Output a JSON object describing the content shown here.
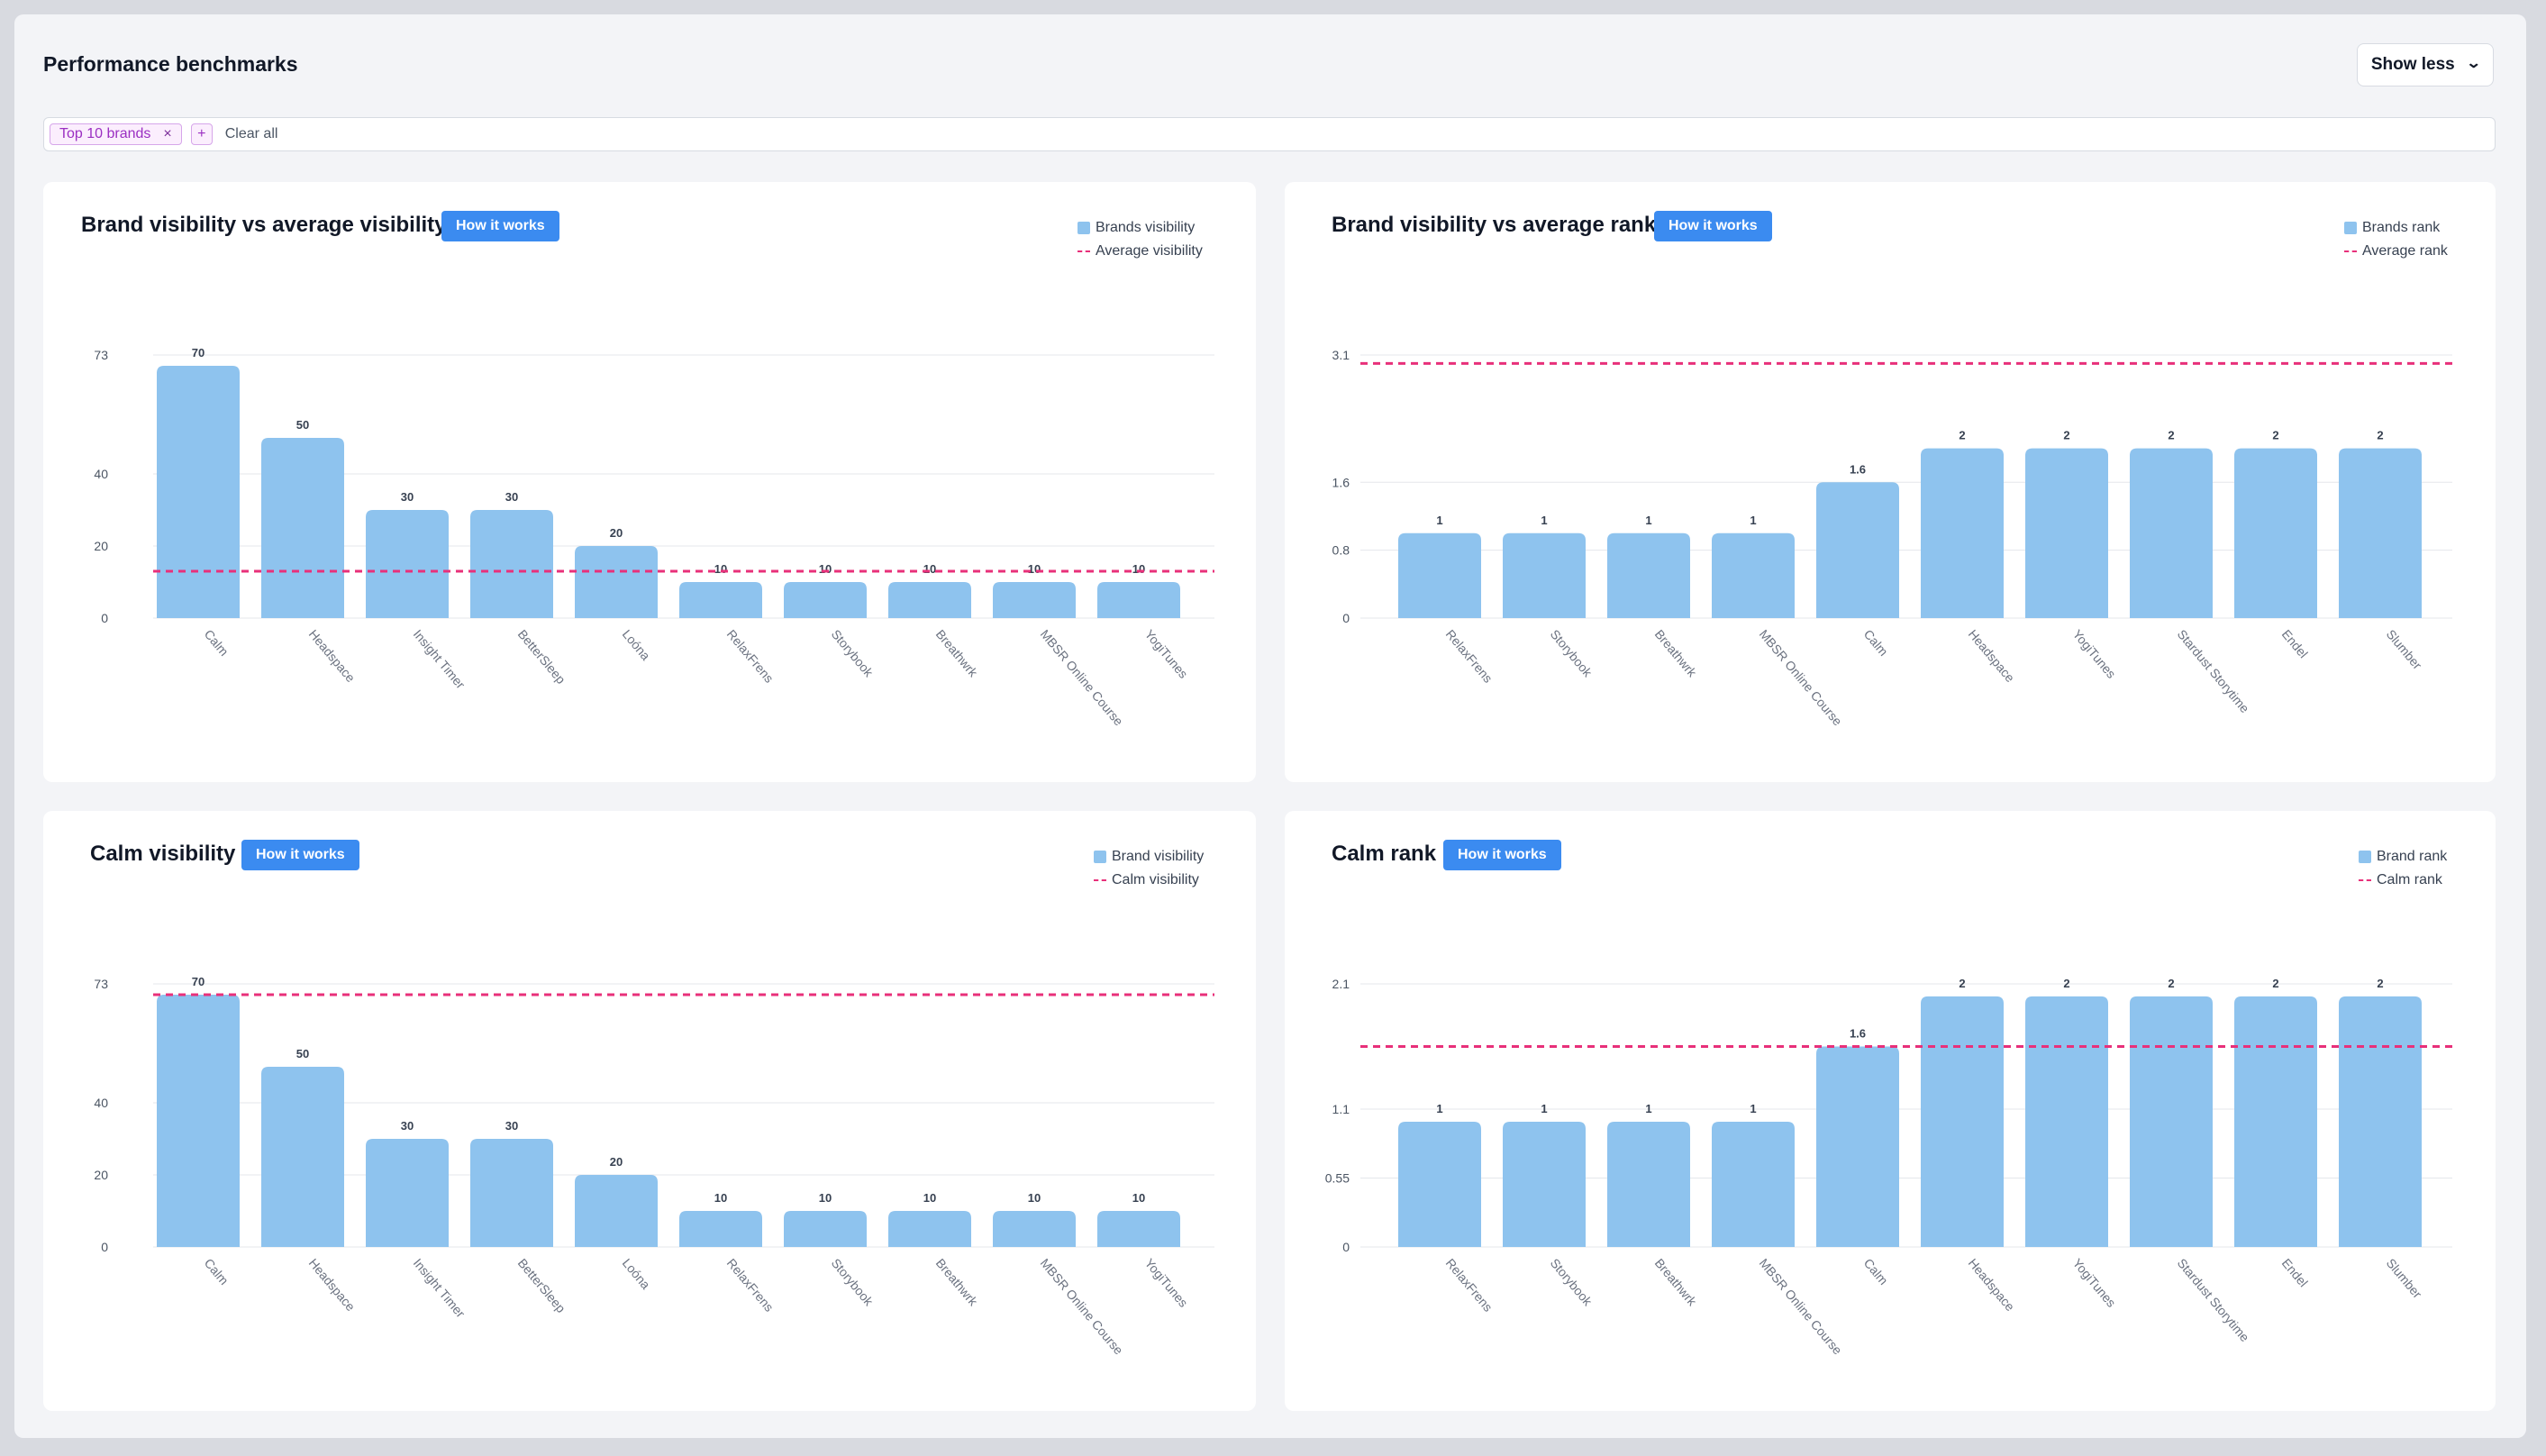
{
  "header": {
    "title": "Performance benchmarks",
    "show_less_label": "Show less",
    "show_less_icon": "chevron-down-icon"
  },
  "filters": {
    "chips": [
      {
        "label": "Top 10 brands",
        "remove_icon": "close-icon"
      }
    ],
    "add_label": "+",
    "clear_all_label": "Clear all"
  },
  "colors": {
    "bar": "#8ec3ee",
    "reference_line": "#e8307a",
    "accent_button": "#3b8bf0"
  },
  "cards": [
    {
      "title": "Brand visibility vs average visibility",
      "how_label": "How it works",
      "legend": {
        "bars": "Brands visibility",
        "line": "Average visibility"
      }
    },
    {
      "title": "Brand visibility vs average rank",
      "how_label": "How it works",
      "legend": {
        "bars": "Brands rank",
        "line": "Average rank"
      }
    },
    {
      "title": "Calm visibility",
      "how_label": "How it works",
      "legend": {
        "bars": "Brand visibility",
        "line": "Calm visibility"
      }
    },
    {
      "title": "Calm rank",
      "how_label": "How it works",
      "legend": {
        "bars": "Brand rank",
        "line": "Calm rank"
      }
    }
  ],
  "chart_data": [
    {
      "type": "bar",
      "title": "Brand visibility vs average visibility",
      "categories": [
        "Calm",
        "Headspace",
        "Insight Timer",
        "BetterSleep",
        "Loóna",
        "RelaxFrens",
        "Storybook",
        "Breathwrk",
        "MBSR Online Course",
        "YogiTunes"
      ],
      "series": [
        {
          "name": "Brands visibility",
          "values": [
            70,
            50,
            30,
            30,
            20,
            10,
            10,
            10,
            10,
            10
          ]
        }
      ],
      "reference_line": {
        "name": "Average visibility",
        "value": 13
      }
    },
    {
      "type": "bar",
      "title": "Brand visibility vs average rank",
      "categories": [
        "RelaxFrens",
        "Storybook",
        "Breathwrk",
        "MBSR Online Course",
        "Calm",
        "Headspace",
        "YogiTunes",
        "Stardust Storytime",
        "Endel",
        "Slumber"
      ],
      "series": [
        {
          "name": "Brands rank",
          "values": [
            1,
            1,
            1,
            1,
            1.6,
            2,
            2,
            2,
            2,
            2
          ]
        }
      ],
      "reference_line": {
        "name": "Average rank",
        "value": 3
      }
    },
    {
      "type": "bar",
      "title": "Calm visibility",
      "categories": [
        "Calm",
        "Headspace",
        "Insight Timer",
        "BetterSleep",
        "Loóna",
        "RelaxFrens",
        "Storybook",
        "Breathwrk",
        "MBSR Online Course",
        "YogiTunes"
      ],
      "series": [
        {
          "name": "Brand visibility",
          "values": [
            70,
            50,
            30,
            30,
            20,
            10,
            10,
            10,
            10,
            10
          ]
        }
      ],
      "reference_line": {
        "name": "Calm visibility",
        "value": 70
      }
    },
    {
      "type": "bar",
      "title": "Calm rank",
      "categories": [
        "RelaxFrens",
        "Storybook",
        "Breathwrk",
        "MBSR Online Course",
        "Calm",
        "Headspace",
        "YogiTunes",
        "Stardust Storytime",
        "Endel",
        "Slumber"
      ],
      "series": [
        {
          "name": "Brand rank",
          "values": [
            1,
            1,
            1,
            1,
            1.6,
            2,
            2,
            2,
            2,
            2
          ]
        }
      ],
      "reference_line": {
        "name": "Calm rank",
        "value": 1.6
      }
    }
  ],
  "axes": [
    {
      "ticks": [
        0,
        20,
        40,
        73
      ],
      "tick_labels": [
        "0",
        "20",
        "40",
        "73"
      ],
      "ymax": 73,
      "grid": true
    },
    {
      "ticks": [
        0,
        0.8,
        1.6,
        3.1
      ],
      "tick_labels": [
        "0",
        "0.8",
        "1.6",
        "3.1"
      ],
      "ymax": 3.1,
      "grid": true
    },
    {
      "ticks": [
        0,
        20,
        40,
        73
      ],
      "tick_labels": [
        "0",
        "20",
        "40",
        "73"
      ],
      "ymax": 73,
      "grid": true
    },
    {
      "ticks": [
        0,
        0.55,
        1.1,
        2.1
      ],
      "tick_labels": [
        "0",
        "0.55",
        "1.1",
        "2.1"
      ],
      "ymax": 2.1,
      "grid": true
    }
  ]
}
